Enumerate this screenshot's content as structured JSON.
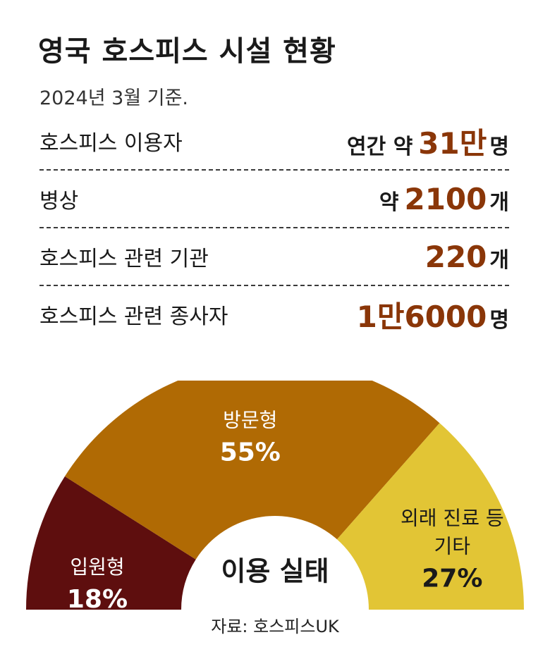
{
  "title": "영국 호스피스 시설 현황",
  "subtitle": "2024년 3월 기준.",
  "stats": [
    {
      "label": "호스피스 이용자",
      "prefix": "연간 약",
      "number": "31만",
      "suffix": "명"
    },
    {
      "label": "병상",
      "prefix": "약",
      "number": "2100",
      "suffix": "개"
    },
    {
      "label": "호스피스 관련 기관",
      "prefix": "",
      "number": "220",
      "suffix": "개"
    },
    {
      "label": "호스피스 관련 종사자",
      "prefix": "",
      "number": "1만6000",
      "suffix": "명"
    }
  ],
  "chart_data": {
    "type": "pie",
    "subtype": "half-donut",
    "center_label": "이용 실태",
    "slices": [
      {
        "name": "입원형",
        "lines": [
          "입원형"
        ],
        "value": 18,
        "label": "18%",
        "color": "#5e0e0e",
        "text_color": "#ffffff"
      },
      {
        "name": "방문형",
        "lines": [
          "방문형"
        ],
        "value": 55,
        "label": "55%",
        "color": "#b06a04",
        "text_color": "#ffffff"
      },
      {
        "name": "외래 진료 등 기타",
        "lines": [
          "외래 진료 등",
          "기타"
        ],
        "value": 27,
        "label": "27%",
        "color": "#e2c535",
        "text_color": "#1a1a1a"
      }
    ]
  },
  "source": "자료: 호스피스UK"
}
